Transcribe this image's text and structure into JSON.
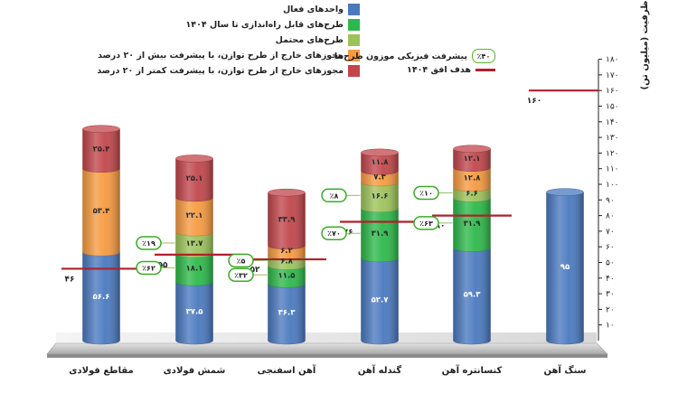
{
  "chart_data": {
    "type": "bar",
    "stacked": true,
    "ylabel": "ظرفیت (میلیون تن)",
    "ylim": [
      0,
      180
    ],
    "yticks": [
      "۱۰",
      "۲۰",
      "۳۰",
      "۴۰",
      "۵۰",
      "۶۰",
      "۷۰",
      "۸۰",
      "۹۰",
      "۱۰۰",
      "۱۱۰",
      "۱۲۰",
      "۱۳۰",
      "۱۴۰",
      "۱۵۰",
      "۱۶۰",
      "۱۷۰",
      "۱۸۰"
    ],
    "categories": [
      "مقاطع فولادی",
      "شمش فولادی",
      "آهن اسفنجی",
      "گندله آهن",
      "کنسانتره آهن",
      "سنگ آهن"
    ],
    "series": [
      {
        "name": "واحدهای فعال",
        "color": "#4a79bf",
        "values": [
          56.6,
          37.5,
          36.3,
          52.7,
          59.3,
          95
        ],
        "labels": [
          "۵۶.۶",
          "۳۷.۵",
          "۳۶.۳",
          "۵۲.۷",
          "۵۹.۳",
          "۹۵"
        ]
      },
      {
        "name": "طرح‌های قابل راه‌اندازی تا سال ۱۴۰۴",
        "color": "#2db84a",
        "values": [
          0,
          18.1,
          11.5,
          31.9,
          31.9,
          0
        ],
        "labels": [
          "",
          "۱۸.۱",
          "۱۱.۵",
          "۳۱.۹",
          "۳۱.۹",
          ""
        ]
      },
      {
        "name": "طرح‌های محتمل",
        "color": "#9cc35a",
        "values": [
          0,
          13.7,
          6.8,
          16.6,
          6.6,
          0
        ],
        "labels": [
          "",
          "۱۳.۷",
          "۶.۸",
          "۱۶.۶",
          "۶.۶",
          ""
        ]
      },
      {
        "name": "مجوزهای خارج از طرح توازن، با پیشرفت بیش از ۲۰ درصد",
        "color": "#f59a40",
        "values": [
          53.4,
          22.1,
          6.2,
          7.3,
          12.8,
          0
        ],
        "labels": [
          "۵۳.۴",
          "۲۲.۱",
          "۶.۲",
          "۷.۳",
          "۱۲.۸",
          ""
        ]
      },
      {
        "name": "مجوزهای خارج از طرح توازن، با پیشرفت کمتر از ۲۰ درصد",
        "color": "#c0464b",
        "values": [
          25.4,
          25.1,
          33.9,
          11.8,
          12.1,
          0
        ],
        "labels": [
          "۲۵.۴",
          "۲۵.۱",
          "۳۳.۹",
          "۱۱.۸",
          "۱۲.۱",
          ""
        ]
      }
    ],
    "target_1404": {
      "name": "هدف افق ۱۴۰۴",
      "color": "#b0202a",
      "values": [
        46,
        55,
        52,
        76,
        80,
        160
      ],
      "labels": [
        "۴۶",
        "۵۵",
        "۵۲",
        "۷۶",
        "۸۰",
        "۱۶۰"
      ]
    },
    "progress": {
      "name": "پیشرفت فیزیکی موزون طرح‌ها",
      "legend_sample": "٪۴۰",
      "items": [
        {
          "category": "شمش فولادی",
          "series": "طرح‌های قابل راه‌اندازی تا سال ۱۴۰۴",
          "value": 62,
          "label": "٪۶۲"
        },
        {
          "category": "شمش فولادی",
          "series": "طرح‌های محتمل",
          "value": 19,
          "label": "٪۱۹"
        },
        {
          "category": "آهن اسفنجی",
          "series": "طرح‌های قابل راه‌اندازی تا سال ۱۴۰۴",
          "value": 32,
          "label": "٪۳۲"
        },
        {
          "category": "آهن اسفنجی",
          "series": "طرح‌های محتمل",
          "value": 5,
          "label": "٪۵"
        },
        {
          "category": "گندله آهن",
          "series": "طرح‌های قابل راه‌اندازی تا سال ۱۴۰۴",
          "value": 70,
          "label": "٪۷۰"
        },
        {
          "category": "گندله آهن",
          "series": "طرح‌های محتمل",
          "value": 8,
          "label": "٪۸"
        },
        {
          "category": "کنسانتره آهن",
          "series": "طرح‌های قابل راه‌اندازی تا سال ۱۴۰۴",
          "value": 63,
          "label": "٪۶۳"
        },
        {
          "category": "کنسانتره آهن",
          "series": "طرح‌های محتمل",
          "value": 10,
          "label": "٪۱۰"
        }
      ]
    },
    "grid": false,
    "legend_position": "top-left"
  }
}
